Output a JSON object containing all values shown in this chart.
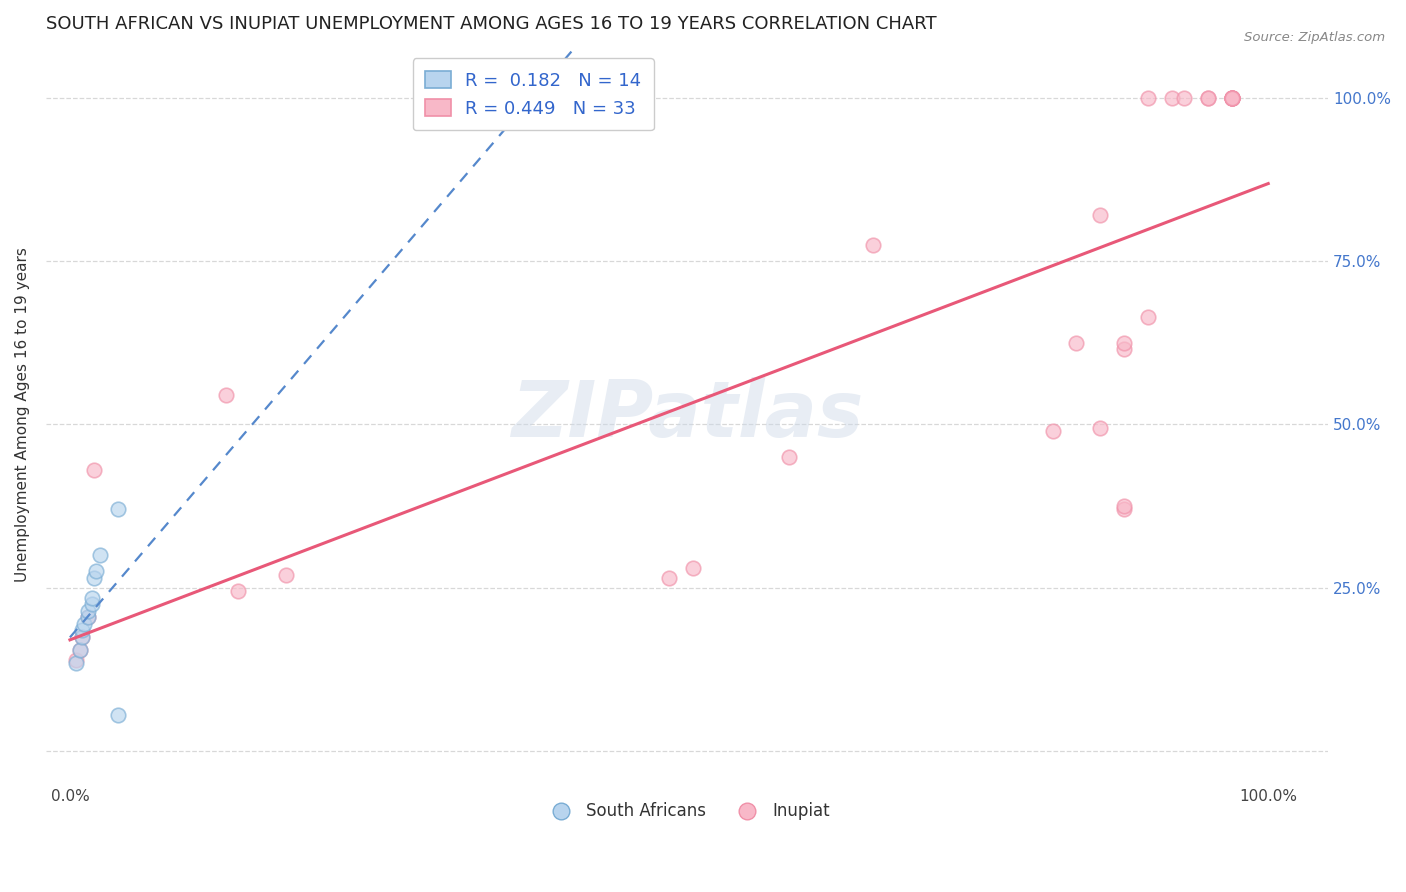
{
  "title": "SOUTH AFRICAN VS INUPIAT UNEMPLOYMENT AMONG AGES 16 TO 19 YEARS CORRELATION CHART",
  "source": "Source: ZipAtlas.com",
  "ylabel": "Unemployment Among Ages 16 to 19 years",
  "xlim": [
    -0.02,
    1.05
  ],
  "ylim": [
    -0.05,
    1.08
  ],
  "ytick_vals": [
    0.0,
    0.25,
    0.5,
    0.75,
    1.0
  ],
  "ytick_labels_right": [
    "",
    "25.0%",
    "50.0%",
    "75.0%",
    "100.0%"
  ],
  "xtick_labels": [
    "0.0%",
    "",
    "",
    "",
    "",
    "",
    "",
    "",
    "",
    "",
    "100.0%"
  ],
  "background_color": "#ffffff",
  "grid_color": "#d8d8d8",
  "south_african_x": [
    0.005,
    0.008,
    0.01,
    0.01,
    0.012,
    0.015,
    0.015,
    0.018,
    0.018,
    0.02,
    0.022,
    0.025,
    0.04,
    0.04
  ],
  "south_african_y": [
    0.135,
    0.155,
    0.175,
    0.185,
    0.195,
    0.205,
    0.215,
    0.225,
    0.235,
    0.265,
    0.275,
    0.3,
    0.37,
    0.055
  ],
  "inupiat_x": [
    0.005,
    0.008,
    0.01,
    0.015,
    0.02,
    0.13,
    0.14,
    0.18,
    0.5,
    0.52,
    0.6,
    0.67,
    0.82,
    0.84,
    0.86,
    0.86,
    0.88,
    0.88,
    0.88,
    0.88,
    0.9,
    0.9,
    0.92,
    0.93,
    0.95,
    0.95,
    0.97,
    0.97,
    0.97,
    0.97,
    0.97,
    0.97,
    0.97
  ],
  "inupiat_y": [
    0.14,
    0.155,
    0.175,
    0.205,
    0.43,
    0.545,
    0.245,
    0.27,
    0.265,
    0.28,
    0.45,
    0.775,
    0.49,
    0.625,
    0.495,
    0.82,
    0.37,
    0.375,
    0.615,
    0.625,
    0.665,
    1.0,
    1.0,
    1.0,
    1.0,
    1.0,
    1.0,
    1.0,
    1.0,
    1.0,
    1.0,
    1.0,
    1.0
  ],
  "south_african_R": 0.182,
  "south_african_N": 14,
  "inupiat_R": 0.449,
  "inupiat_N": 33,
  "sa_face_color": "#b8d4ee",
  "sa_edge_color": "#7aadd4",
  "sa_line_color": "#5588cc",
  "inupiat_face_color": "#f8b8c8",
  "inupiat_edge_color": "#f090a8",
  "inupiat_line_color": "#e85878",
  "marker_size": 110,
  "marker_alpha": 0.65
}
